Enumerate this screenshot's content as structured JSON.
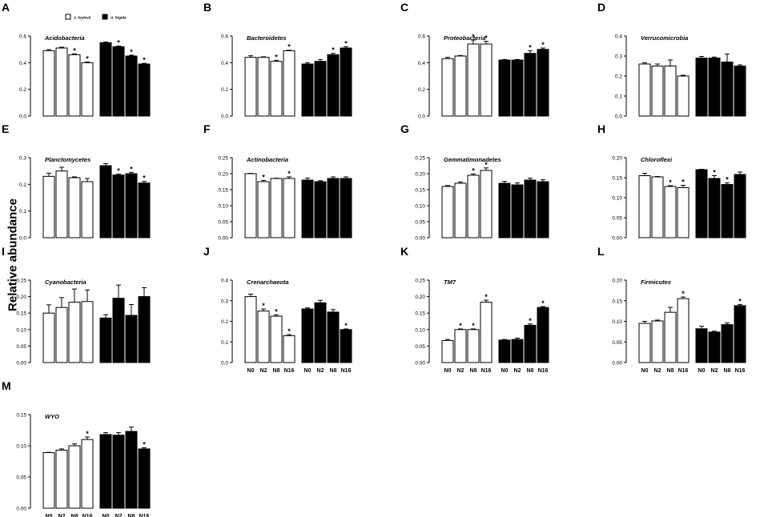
{
  "figure": {
    "y_axis_label": "Relative abundance",
    "legend": [
      {
        "name": "S. krylovii",
        "fill": "#ffffff"
      },
      {
        "name": "A. frigida",
        "fill": "#000000"
      }
    ],
    "significance_marker": "*",
    "colors": {
      "open": "#ffffff",
      "filled": "#000000",
      "stroke": "#000000"
    }
  },
  "chart_data": [
    {
      "panel": "A",
      "type": "bar",
      "title": "Acidobacteria",
      "ylim": [
        0,
        0.6
      ],
      "yticks": [
        "0.0",
        "0.2",
        "0.4",
        "0.6"
      ],
      "categories": [
        "N0",
        "N2",
        "N8",
        "N16"
      ],
      "x_labels_shown": false,
      "series": [
        {
          "name": "S. krylovii",
          "values": [
            0.49,
            0.51,
            0.46,
            0.4
          ],
          "errors": [
            0.008,
            0.006,
            0.006,
            0.005
          ],
          "sig": [
            false,
            false,
            true,
            true
          ]
        },
        {
          "name": "A. frigida",
          "values": [
            0.55,
            0.52,
            0.45,
            0.39
          ],
          "errors": [
            0.005,
            0.005,
            0.006,
            0.005
          ],
          "sig": [
            false,
            true,
            true,
            true
          ]
        }
      ]
    },
    {
      "panel": "B",
      "type": "bar",
      "title": "Bacteroidetes",
      "ylim": [
        0,
        0.6
      ],
      "yticks": [
        "0.0",
        "0.2",
        "0.4",
        "0.6"
      ],
      "categories": [
        "N0",
        "N2",
        "N8",
        "N16"
      ],
      "x_labels_shown": false,
      "series": [
        {
          "name": "S. krylovii",
          "values": [
            0.44,
            0.44,
            0.41,
            0.49
          ],
          "errors": [
            0.012,
            0.004,
            0.008,
            0.004
          ],
          "sig": [
            false,
            false,
            true,
            true
          ]
        },
        {
          "name": "A. frigida",
          "values": [
            0.39,
            0.41,
            0.46,
            0.51
          ],
          "errors": [
            0.01,
            0.014,
            0.01,
            0.01
          ],
          "sig": [
            false,
            false,
            true,
            true
          ]
        }
      ]
    },
    {
      "panel": "C",
      "type": "bar",
      "title": "Proteobacteria",
      "ylim": [
        0,
        0.6
      ],
      "yticks": [
        "0.0",
        "0.2",
        "0.4",
        "0.6"
      ],
      "categories": [
        "N0",
        "N2",
        "N8",
        "N16"
      ],
      "x_labels_shown": false,
      "series": [
        {
          "name": "S. krylovii",
          "values": [
            0.43,
            0.45,
            0.54,
            0.54
          ],
          "errors": [
            0.01,
            0.004,
            0.03,
            0.02
          ],
          "sig": [
            false,
            false,
            true,
            true
          ]
        },
        {
          "name": "A. frigida",
          "values": [
            0.42,
            0.42,
            0.47,
            0.5
          ],
          "errors": [
            0.004,
            0.004,
            0.02,
            0.01
          ],
          "sig": [
            false,
            false,
            true,
            true
          ]
        }
      ]
    },
    {
      "panel": "D",
      "type": "bar",
      "title": "Verrucomicrobia",
      "ylim": [
        0,
        0.4
      ],
      "yticks": [
        "0.0",
        "0.1",
        "0.2",
        "0.3",
        "0.4"
      ],
      "categories": [
        "N0",
        "N2",
        "N8",
        "N16"
      ],
      "x_labels_shown": false,
      "series": [
        {
          "name": "S. krylovii",
          "values": [
            0.26,
            0.25,
            0.25,
            0.2
          ],
          "errors": [
            0.006,
            0.01,
            0.03,
            0.004
          ],
          "sig": [
            false,
            false,
            false,
            false
          ]
        },
        {
          "name": "A. frigida",
          "values": [
            0.29,
            0.29,
            0.27,
            0.25
          ],
          "errors": [
            0.008,
            0.005,
            0.04,
            0.006
          ],
          "sig": [
            false,
            false,
            false,
            false
          ]
        }
      ]
    },
    {
      "panel": "E",
      "type": "bar",
      "title": "Planctomycetes",
      "ylim": [
        0,
        0.3
      ],
      "yticks": [
        "0.0",
        "0.1",
        "0.2",
        "0.3"
      ],
      "categories": [
        "N0",
        "N2",
        "N8",
        "N16"
      ],
      "x_labels_shown": false,
      "series": [
        {
          "name": "S. krylovii",
          "values": [
            0.23,
            0.25,
            0.225,
            0.21
          ],
          "errors": [
            0.012,
            0.014,
            0.003,
            0.012
          ],
          "sig": [
            false,
            false,
            false,
            false
          ]
        },
        {
          "name": "A. frigida",
          "values": [
            0.27,
            0.235,
            0.24,
            0.205
          ],
          "errors": [
            0.008,
            0.003,
            0.005,
            0.006
          ],
          "sig": [
            false,
            true,
            true,
            true
          ]
        }
      ]
    },
    {
      "panel": "F",
      "type": "bar",
      "title": "Actinobacteria",
      "ylim": [
        0,
        0.25
      ],
      "yticks": [
        "0.00",
        "0.05",
        "0.10",
        "0.15",
        "0.20",
        "0.25"
      ],
      "categories": [
        "N0",
        "N2",
        "N8",
        "N16"
      ],
      "x_labels_shown": false,
      "series": [
        {
          "name": "S. krylovii",
          "values": [
            0.2,
            0.175,
            0.185,
            0.185
          ],
          "errors": [
            0.001,
            0.004,
            0.001,
            0.005
          ],
          "sig": [
            false,
            true,
            false,
            true
          ]
        },
        {
          "name": "A. frigida",
          "values": [
            0.18,
            0.175,
            0.185,
            0.185
          ],
          "errors": [
            0.006,
            0.003,
            0.005,
            0.005
          ],
          "sig": [
            false,
            false,
            false,
            false
          ]
        }
      ]
    },
    {
      "panel": "G",
      "type": "bar",
      "title": "Gemmatimonadetes",
      "ylim": [
        0,
        0.25
      ],
      "yticks": [
        "0.00",
        "0.05",
        "0.10",
        "0.15",
        "0.20",
        "0.25"
      ],
      "categories": [
        "N0",
        "N2",
        "N8",
        "N16"
      ],
      "x_labels_shown": false,
      "series": [
        {
          "name": "S. krylovii",
          "values": [
            0.16,
            0.17,
            0.195,
            0.21
          ],
          "errors": [
            0.003,
            0.004,
            0.004,
            0.008
          ],
          "sig": [
            false,
            false,
            true,
            true
          ]
        },
        {
          "name": "A. frigida",
          "values": [
            0.17,
            0.165,
            0.18,
            0.175
          ],
          "errors": [
            0.006,
            0.006,
            0.006,
            0.006
          ],
          "sig": [
            false,
            false,
            false,
            false
          ]
        }
      ]
    },
    {
      "panel": "H",
      "type": "bar",
      "title": "Chloroflexi",
      "ylim": [
        0,
        0.2
      ],
      "yticks": [
        "0.00",
        "0.05",
        "0.10",
        "0.15",
        "0.20"
      ],
      "categories": [
        "N0",
        "N2",
        "N8",
        "N16"
      ],
      "x_labels_shown": false,
      "series": [
        {
          "name": "S. krylovii",
          "values": [
            0.155,
            0.152,
            0.128,
            0.125
          ],
          "errors": [
            0.006,
            0.001,
            0.002,
            0.006
          ],
          "sig": [
            false,
            false,
            true,
            true
          ]
        },
        {
          "name": "A. frigida",
          "values": [
            0.17,
            0.148,
            0.133,
            0.158
          ],
          "errors": [
            0.001,
            0.007,
            0.004,
            0.006
          ],
          "sig": [
            false,
            true,
            true,
            false
          ]
        }
      ]
    },
    {
      "panel": "I",
      "type": "bar",
      "title": "Cyanobacteria",
      "ylim": [
        0,
        0.25
      ],
      "yticks": [
        "0.00",
        "0.05",
        "0.10",
        "0.15",
        "0.20",
        "0.25"
      ],
      "categories": [
        "N0",
        "N2",
        "N8",
        "N16"
      ],
      "x_labels_shown": false,
      "series": [
        {
          "name": "S. krylovii",
          "values": [
            0.15,
            0.167,
            0.183,
            0.185
          ],
          "errors": [
            0.025,
            0.03,
            0.04,
            0.035
          ],
          "sig": [
            false,
            false,
            false,
            false
          ]
        },
        {
          "name": "A. frigida",
          "values": [
            0.135,
            0.195,
            0.143,
            0.2
          ],
          "errors": [
            0.01,
            0.04,
            0.033,
            0.027
          ],
          "sig": [
            false,
            false,
            false,
            false
          ]
        }
      ]
    },
    {
      "panel": "J",
      "type": "bar",
      "title": "Crenarchaeota",
      "ylim": [
        0,
        0.4
      ],
      "yticks": [
        "0.0",
        "0.1",
        "0.2",
        "0.3",
        "0.4"
      ],
      "categories": [
        "N0",
        "N2",
        "N8",
        "N16"
      ],
      "x_labels_shown": true,
      "series": [
        {
          "name": "S. krylovii",
          "values": [
            0.32,
            0.25,
            0.225,
            0.13
          ],
          "errors": [
            0.012,
            0.01,
            0.006,
            0.006
          ],
          "sig": [
            false,
            true,
            true,
            true
          ]
        },
        {
          "name": "A. frigida",
          "values": [
            0.26,
            0.29,
            0.245,
            0.16
          ],
          "errors": [
            0.005,
            0.012,
            0.012,
            0.003
          ],
          "sig": [
            false,
            false,
            false,
            true
          ]
        }
      ]
    },
    {
      "panel": "K",
      "type": "bar",
      "title": "TM7",
      "ylim": [
        0,
        0.25
      ],
      "yticks": [
        "0.00",
        "0.05",
        "0.10",
        "0.15",
        "0.20",
        "0.25"
      ],
      "categories": [
        "N0",
        "N2",
        "N8",
        "N16"
      ],
      "x_labels_shown": true,
      "series": [
        {
          "name": "S. krylovii",
          "values": [
            0.067,
            0.1,
            0.1,
            0.183
          ],
          "errors": [
            0.003,
            0.002,
            0.002,
            0.006
          ],
          "sig": [
            false,
            true,
            true,
            true
          ]
        },
        {
          "name": "A. frigida",
          "values": [
            0.068,
            0.07,
            0.113,
            0.167
          ],
          "errors": [
            0.002,
            0.004,
            0.004,
            0.003
          ],
          "sig": [
            false,
            false,
            true,
            true
          ]
        }
      ]
    },
    {
      "panel": "L",
      "type": "bar",
      "title": "Firmicutes",
      "ylim": [
        0,
        0.2
      ],
      "yticks": [
        "0.00",
        "0.05",
        "0.10",
        "0.15",
        "0.20"
      ],
      "categories": [
        "N0",
        "N2",
        "N8",
        "N16"
      ],
      "x_labels_shown": true,
      "series": [
        {
          "name": "S. krylovii",
          "values": [
            0.095,
            0.101,
            0.122,
            0.155
          ],
          "errors": [
            0.005,
            0.002,
            0.012,
            0.004
          ],
          "sig": [
            false,
            false,
            false,
            true
          ]
        },
        {
          "name": "A. frigida",
          "values": [
            0.082,
            0.074,
            0.092,
            0.138
          ],
          "errors": [
            0.006,
            0.002,
            0.004,
            0.003
          ],
          "sig": [
            false,
            false,
            false,
            true
          ]
        }
      ]
    },
    {
      "panel": "M",
      "type": "bar",
      "title": "WYO",
      "ylim": [
        0,
        0.15
      ],
      "yticks": [
        "0.00",
        "0.05",
        "0.10",
        "0.15"
      ],
      "categories": [
        "N0",
        "N2",
        "N8",
        "N16"
      ],
      "x_labels_shown": true,
      "series": [
        {
          "name": "S. krylovii",
          "values": [
            0.089,
            0.093,
            0.1,
            0.11
          ],
          "errors": [
            0.0005,
            0.002,
            0.003,
            0.004
          ],
          "sig": [
            false,
            false,
            false,
            true
          ]
        },
        {
          "name": "A. frigida",
          "values": [
            0.118,
            0.117,
            0.123,
            0.095
          ],
          "errors": [
            0.003,
            0.004,
            0.007,
            0.002
          ],
          "sig": [
            false,
            false,
            false,
            true
          ]
        }
      ]
    }
  ]
}
